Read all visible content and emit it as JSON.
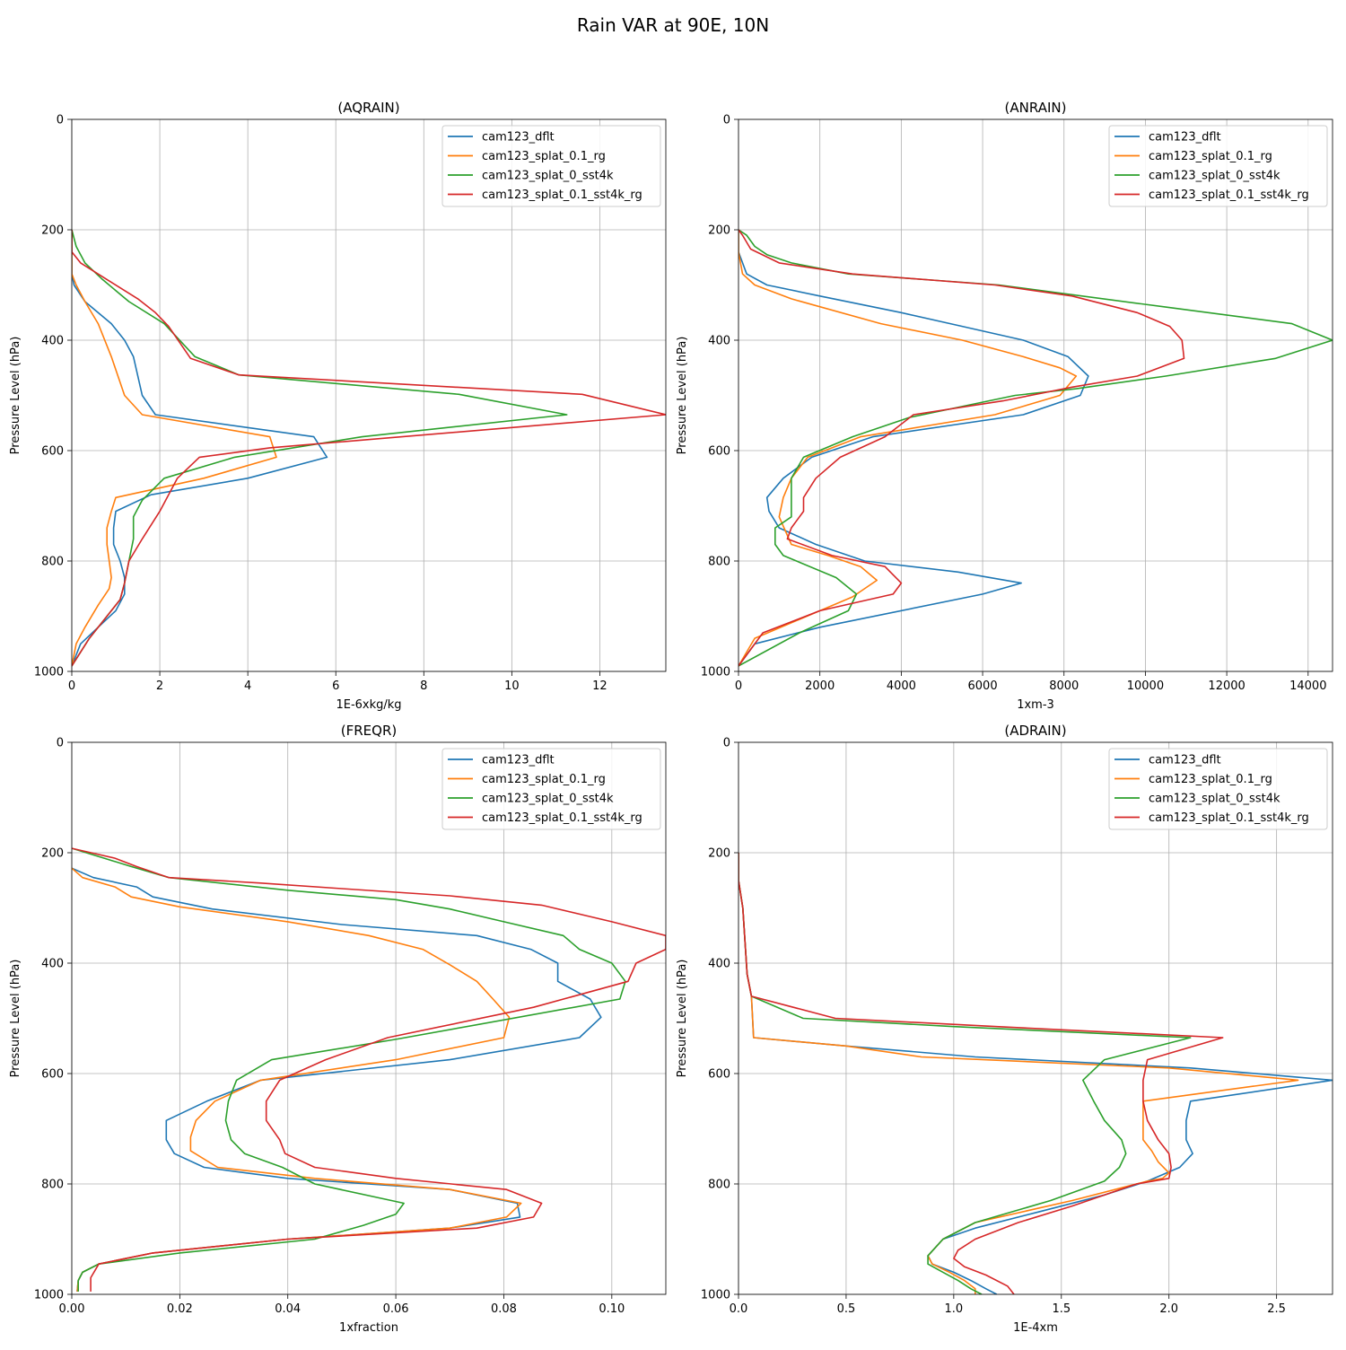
{
  "figure": {
    "title": "Rain VAR at 90E, 10N"
  },
  "colors": {
    "cam123_dflt": "#1f77b4",
    "cam123_splat_0.1_rg": "#ff7f0e",
    "cam123_splat_0_sst4k": "#2ca02c",
    "cam123_splat_0.1_sst4k_rg": "#d62728"
  },
  "chart_data": [
    {
      "type": "line",
      "title": "(AQRAIN)",
      "xlabel": "1E-6xkg/kg",
      "ylabel": "Pressure Level (hPa)",
      "xlim": [
        0,
        13.5
      ],
      "ylim": [
        1000,
        0
      ],
      "xticks": [
        "0",
        "2",
        "4",
        "6",
        "8",
        "10",
        "12"
      ],
      "yticks": [
        "0",
        "200",
        "400",
        "600",
        "800",
        "1000"
      ],
      "grid": true,
      "legend": "upper right",
      "series": [
        {
          "name": "cam123_dflt",
          "color": "#1f77b4",
          "x": [
            0,
            0,
            0.05,
            0.3,
            0.9,
            1.2,
            1.4,
            1.6,
            1.9,
            5.5,
            5.8,
            4.0,
            1.8,
            1.0,
            0.95,
            0.95,
            1.1,
            1.2,
            1.2,
            1.0,
            0.6,
            0.2,
            0
          ],
          "y": [
            200,
            280,
            300,
            330,
            370,
            400,
            430,
            500,
            535,
            575,
            612,
            650,
            680,
            710,
            740,
            770,
            800,
            830,
            860,
            890,
            920,
            950,
            990
          ]
        },
        {
          "name": "cam123_splat_0.1_rg",
          "color": "#ff7f0e",
          "x": [
            0,
            0,
            0.1,
            0.3,
            0.6,
            0.9,
            1.2,
            1.6,
            4.5,
            4.65,
            3.0,
            1.0,
            0.9,
            0.8,
            0.8,
            0.85,
            0.9,
            0.85,
            0.6,
            0.3,
            0.1,
            0
          ],
          "y": [
            200,
            280,
            300,
            330,
            370,
            430,
            500,
            535,
            575,
            612,
            650,
            685,
            710,
            740,
            770,
            800,
            830,
            850,
            880,
            920,
            950,
            990
          ]
        },
        {
          "name": "cam123_splat_0_sst4k",
          "color": "#2ca02c",
          "x": [
            0,
            0.1,
            0.3,
            0.7,
            1.3,
            2.1,
            2.8,
            3.8,
            8.8,
            11.25,
            6.6,
            3.7,
            2.1,
            1.6,
            1.4,
            1.4,
            1.3,
            1.2,
            1.1,
            0.8,
            0.4,
            0
          ],
          "y": [
            200,
            230,
            260,
            290,
            330,
            370,
            430,
            463,
            498,
            535,
            575,
            612,
            650,
            690,
            720,
            760,
            800,
            840,
            870,
            900,
            940,
            990
          ]
        },
        {
          "name": "cam123_splat_0.1_sst4k_rg",
          "color": "#d62728",
          "x": [
            0,
            0,
            0.2,
            0.8,
            1.5,
            1.9,
            2.2,
            2.7,
            3.8,
            11.6,
            13.5,
            4.5,
            2.9,
            2.4,
            2.0,
            1.6,
            1.3,
            1.2,
            1.1,
            0.8,
            0.4,
            0
          ],
          "y": [
            200,
            240,
            260,
            290,
            325,
            350,
            375,
            433,
            463,
            498,
            535,
            595,
            612,
            650,
            710,
            760,
            800,
            840,
            870,
            900,
            940,
            990
          ]
        }
      ]
    },
    {
      "type": "line",
      "title": "(ANRAIN)",
      "xlabel": "1xm-3",
      "ylabel": "Pressure Level (hPa)",
      "xlim": [
        0,
        14600
      ],
      "ylim": [
        1000,
        0
      ],
      "xticks": [
        "0",
        "2000",
        "4000",
        "6000",
        "8000",
        "10000",
        "12000",
        "14000"
      ],
      "yticks": [
        "0",
        "200",
        "400",
        "600",
        "800",
        "1000"
      ],
      "grid": true,
      "legend": "upper right",
      "series": [
        {
          "name": "cam123_dflt",
          "color": "#1f77b4",
          "x": [
            0,
            0,
            200,
            700,
            2000,
            4000,
            5500,
            7000,
            8100,
            8600,
            8400,
            7000,
            3300,
            1800,
            1100,
            700,
            750,
            1000,
            1900,
            3100,
            5400,
            6950,
            6000,
            2000,
            400,
            0
          ],
          "y": [
            200,
            240,
            280,
            300,
            320,
            350,
            375,
            400,
            430,
            465,
            500,
            535,
            575,
            612,
            650,
            685,
            710,
            740,
            770,
            800,
            820,
            840,
            860,
            920,
            950,
            990
          ]
        },
        {
          "name": "cam123_splat_0.1_rg",
          "color": "#ff7f0e",
          "x": [
            0,
            0,
            100,
            400,
            1300,
            3500,
            5500,
            7000,
            7900,
            8300,
            7900,
            6300,
            3000,
            1700,
            1300,
            1100,
            1000,
            1300,
            2200,
            3000,
            3400,
            2800,
            400,
            0
          ],
          "y": [
            200,
            240,
            280,
            300,
            325,
            370,
            400,
            430,
            450,
            465,
            500,
            535,
            575,
            612,
            650,
            685,
            720,
            770,
            790,
            810,
            835,
            865,
            940,
            990
          ]
        },
        {
          "name": "cam123_splat_0_sst4k",
          "color": "#2ca02c",
          "x": [
            0,
            200,
            400,
            700,
            1300,
            2700,
            6400,
            10500,
            13600,
            14600,
            13200,
            10500,
            8300,
            6800,
            4200,
            2800,
            1600,
            1300,
            1300,
            1300,
            900,
            900,
            1100,
            2400,
            2900,
            2700,
            1500,
            0
          ],
          "y": [
            200,
            210,
            230,
            245,
            260,
            280,
            300,
            340,
            370,
            400,
            433,
            465,
            488,
            500,
            540,
            575,
            612,
            650,
            690,
            720,
            740,
            770,
            790,
            830,
            860,
            890,
            930,
            990
          ]
        },
        {
          "name": "cam123_splat_0.1_sst4k_rg",
          "color": "#d62728",
          "x": [
            0,
            100,
            300,
            1000,
            2800,
            6300,
            8200,
            9800,
            10600,
            10900,
            10950,
            9800,
            8200,
            6500,
            4300,
            3600,
            2500,
            1900,
            1600,
            1600,
            1300,
            1200,
            2300,
            3600,
            4000,
            3800,
            2000,
            600,
            0
          ],
          "y": [
            200,
            210,
            235,
            260,
            280,
            300,
            320,
            350,
            375,
            400,
            433,
            465,
            485,
            510,
            535,
            575,
            612,
            650,
            685,
            710,
            740,
            760,
            790,
            810,
            840,
            860,
            890,
            930,
            990
          ]
        }
      ]
    },
    {
      "type": "line",
      "title": "(FREQR)",
      "xlabel": "1xfraction",
      "ylabel": "Pressure Level (hPa)",
      "xlim": [
        0,
        0.11
      ],
      "ylim": [
        1000,
        0
      ],
      "xticks": [
        "0.00",
        "0.02",
        "0.04",
        "0.06",
        "0.08",
        "0.10"
      ],
      "yticks": [
        "0",
        "200",
        "400",
        "600",
        "800",
        "1000"
      ],
      "grid": true,
      "legend": "upper right",
      "series": [
        {
          "name": "cam123_dflt",
          "color": "#1f77b4",
          "x": [
            0,
            0.004,
            0.012,
            0.015,
            0.026,
            0.05,
            0.075,
            0.085,
            0.09,
            0.09,
            0.096,
            0.098,
            0.094,
            0.07,
            0.035,
            0.025,
            0.0175,
            0.0175,
            0.019,
            0.0245,
            0.04,
            0.07,
            0.0825,
            0.083,
            0.07,
            0.04,
            0.015,
            0.005,
            0.002,
            0.0012,
            0.001
          ],
          "y": [
            228,
            245,
            262,
            280,
            302,
            330,
            350,
            375,
            400,
            433,
            465,
            498,
            535,
            575,
            612,
            650,
            685,
            720,
            745,
            770,
            790,
            810,
            835,
            860,
            880,
            900,
            925,
            945,
            960,
            975,
            995
          ]
        },
        {
          "name": "cam123_splat_0.1_rg",
          "color": "#ff7f0e",
          "x": [
            0,
            0.002,
            0.008,
            0.011,
            0.02,
            0.04,
            0.055,
            0.065,
            0.07,
            0.075,
            0.078,
            0.081,
            0.08,
            0.06,
            0.035,
            0.0265,
            0.023,
            0.022,
            0.022,
            0.027,
            0.045,
            0.07,
            0.0832,
            0.0805,
            0.07,
            0.04,
            0.015,
            0.005,
            0.002,
            0.0012,
            0.001
          ],
          "y": [
            228,
            245,
            262,
            280,
            298,
            325,
            350,
            375,
            403,
            433,
            465,
            498,
            535,
            575,
            612,
            650,
            685,
            715,
            740,
            770,
            790,
            810,
            835,
            860,
            880,
            900,
            925,
            945,
            960,
            975,
            995
          ]
        },
        {
          "name": "cam123_splat_0_sst4k",
          "color": "#2ca02c",
          "x": [
            0,
            0.006,
            0.011,
            0.018,
            0.04,
            0.06,
            0.07,
            0.08,
            0.091,
            0.094,
            0.1,
            0.1025,
            0.1015,
            0.06,
            0.037,
            0.0305,
            0.029,
            0.0285,
            0.0295,
            0.032,
            0.039,
            0.045,
            0.0615,
            0.06,
            0.054,
            0.045,
            0.02,
            0.005,
            0.002,
            0.0012,
            0.0012
          ],
          "y": [
            192,
            210,
            225,
            245,
            268,
            285,
            302,
            325,
            350,
            375,
            400,
            433,
            465,
            538,
            575,
            612,
            650,
            685,
            720,
            745,
            770,
            800,
            835,
            855,
            875,
            900,
            925,
            945,
            960,
            975,
            995
          ]
        },
        {
          "name": "cam123_splat_0.1_sst4k_rg",
          "color": "#d62728",
          "x": [
            0,
            0.008,
            0.012,
            0.018,
            0.035,
            0.05,
            0.07,
            0.087,
            0.1,
            0.11,
            0.11,
            0.1045,
            0.103,
            0.0855,
            0.0585,
            0.047,
            0.0385,
            0.036,
            0.036,
            0.0385,
            0.0395,
            0.045,
            0.06,
            0.0805,
            0.087,
            0.0855,
            0.075,
            0.04,
            0.015,
            0.005,
            0.0035,
            0.0035
          ],
          "y": [
            192,
            210,
            225,
            245,
            255,
            265,
            278,
            295,
            325,
            350,
            375,
            400,
            433,
            480,
            535,
            575,
            612,
            650,
            685,
            720,
            745,
            770,
            790,
            810,
            835,
            860,
            880,
            900,
            925,
            945,
            970,
            995
          ]
        }
      ]
    },
    {
      "type": "line",
      "title": "(ADRAIN)",
      "xlabel": "1E-4xm",
      "ylabel": "Pressure Level (hPa)",
      "xlim": [
        0,
        2.76
      ],
      "ylim": [
        1000,
        0
      ],
      "xticks": [
        "0.0",
        "0.5",
        "1.0",
        "1.5",
        "2.0",
        "2.5"
      ],
      "yticks": [
        "0",
        "200",
        "400",
        "600",
        "800",
        "1000"
      ],
      "grid": true,
      "legend": "upper right",
      "series": [
        {
          "name": "cam123_dflt",
          "color": "#1f77b4",
          "x": [
            0,
            0,
            0.02,
            0.04,
            0.06,
            0.07,
            0.5,
            1.1,
            2.1,
            2.76,
            2.1,
            2.08,
            2.08,
            2.11,
            2.05,
            1.9,
            1.7,
            1.4,
            1.1,
            0.95,
            0.88,
            0.9,
            1.0,
            1.08,
            1.15,
            1.2
          ],
          "y": [
            200,
            250,
            300,
            420,
            460,
            535,
            550,
            570,
            590,
            612,
            650,
            685,
            720,
            745,
            770,
            795,
            820,
            850,
            880,
            900,
            930,
            945,
            960,
            975,
            990,
            1000
          ]
        },
        {
          "name": "cam123_splat_0.1_rg",
          "color": "#ff7f0e",
          "x": [
            0,
            0,
            0.02,
            0.04,
            0.06,
            0.07,
            0.5,
            0.85,
            2.0,
            2.6,
            1.88,
            1.88,
            1.88,
            1.88,
            1.92,
            1.95,
            2.0,
            1.97,
            1.9,
            1.55,
            1.1,
            0.95,
            0.88,
            0.9,
            0.98,
            1.05,
            1.1,
            1.1
          ],
          "y": [
            200,
            250,
            300,
            420,
            460,
            535,
            550,
            570,
            590,
            612,
            650,
            685,
            710,
            720,
            740,
            760,
            780,
            790,
            795,
            830,
            870,
            900,
            930,
            945,
            960,
            975,
            990,
            1000
          ]
        },
        {
          "name": "cam123_splat_0_sst4k",
          "color": "#2ca02c",
          "x": [
            0,
            0,
            0.02,
            0.04,
            0.06,
            0.3,
            1.0,
            2.1,
            1.7,
            1.6,
            1.65,
            1.7,
            1.78,
            1.8,
            1.77,
            1.7,
            1.45,
            1.1,
            0.95,
            0.88,
            0.88,
            0.95,
            1.02,
            1.08,
            1.13
          ],
          "y": [
            200,
            250,
            300,
            420,
            460,
            500,
            515,
            535,
            575,
            612,
            650,
            685,
            720,
            745,
            770,
            795,
            830,
            870,
            900,
            930,
            945,
            960,
            975,
            990,
            1000
          ]
        },
        {
          "name": "cam123_splat_0.1_sst4k_rg",
          "color": "#d62728",
          "x": [
            0,
            0,
            0.02,
            0.04,
            0.06,
            0.45,
            1.2,
            2.25,
            1.9,
            1.88,
            1.88,
            1.9,
            1.95,
            2.0,
            2.01,
            2.0,
            1.85,
            1.55,
            1.3,
            1.1,
            1.02,
            1.0,
            1.05,
            1.15,
            1.25,
            1.28
          ],
          "y": [
            200,
            250,
            300,
            420,
            460,
            500,
            515,
            535,
            575,
            612,
            650,
            685,
            720,
            745,
            770,
            790,
            800,
            840,
            870,
            900,
            920,
            935,
            950,
            965,
            985,
            1000
          ]
        }
      ]
    }
  ]
}
